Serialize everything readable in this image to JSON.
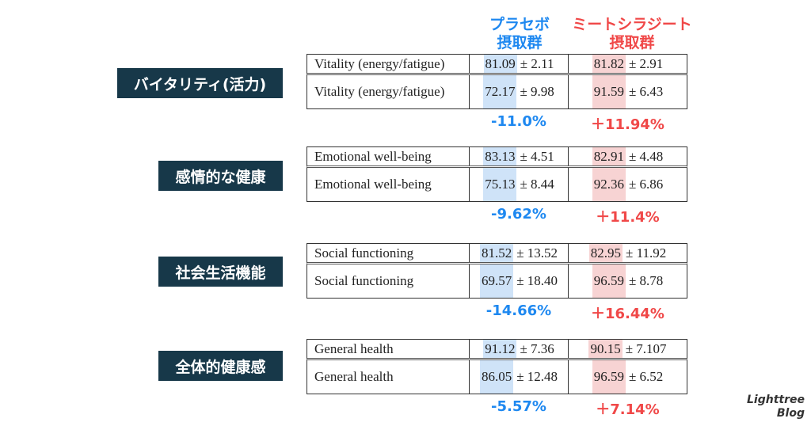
{
  "headers": {
    "placebo": [
      "プラセボ",
      "摂取群"
    ],
    "mitochondria": [
      "ミートシラジート",
      "摂取群"
    ]
  },
  "sections": [
    {
      "label": "バイタリティ(活力)",
      "row_label": "Vitality (energy/fatigue)",
      "placebo": [
        {
          "mean": "81.09",
          "sd": "± 2.11"
        },
        {
          "mean": "72.17",
          "sd": "± 9.98"
        }
      ],
      "mito": [
        {
          "mean": "81.82",
          "sd": "± 2.91"
        },
        {
          "mean": "91.59",
          "sd": "± 6.43"
        }
      ],
      "placebo_change": "-11.0%",
      "mito_change": "＋11.94%"
    },
    {
      "label": "感情的な健康",
      "row_label": "Emotional well-being",
      "placebo": [
        {
          "mean": "83.13",
          "sd": "± 4.51"
        },
        {
          "mean": "75.13",
          "sd": "± 8.44"
        }
      ],
      "mito": [
        {
          "mean": "82.91",
          "sd": "± 4.48"
        },
        {
          "mean": "92.36",
          "sd": "± 6.86"
        }
      ],
      "placebo_change": "-9.62%",
      "mito_change": "＋11.4%"
    },
    {
      "label": "社会生活機能",
      "row_label": "Social functioning",
      "placebo": [
        {
          "mean": "81.52",
          "sd": "± 13.52"
        },
        {
          "mean": "69.57",
          "sd": "± 18.40"
        }
      ],
      "mito": [
        {
          "mean": "82.95",
          "sd": "± 11.92"
        },
        {
          "mean": "96.59",
          "sd": "± 8.78"
        }
      ],
      "placebo_change": "-14.66%",
      "mito_change": "＋16.44%"
    },
    {
      "label": "全体的健康感",
      "row_label": "General health",
      "placebo": [
        {
          "mean": "91.12",
          "sd": "± 7.36"
        },
        {
          "mean": "86.05",
          "sd": "± 12.48"
        }
      ],
      "mito": [
        {
          "mean": "90.15",
          "sd": "± 7.107"
        },
        {
          "mean": "96.59",
          "sd": "± 6.52"
        }
      ],
      "placebo_change": "-5.57%",
      "mito_change": "＋7.14%"
    }
  ],
  "brand": [
    "Lighttree",
    "Blog"
  ]
}
